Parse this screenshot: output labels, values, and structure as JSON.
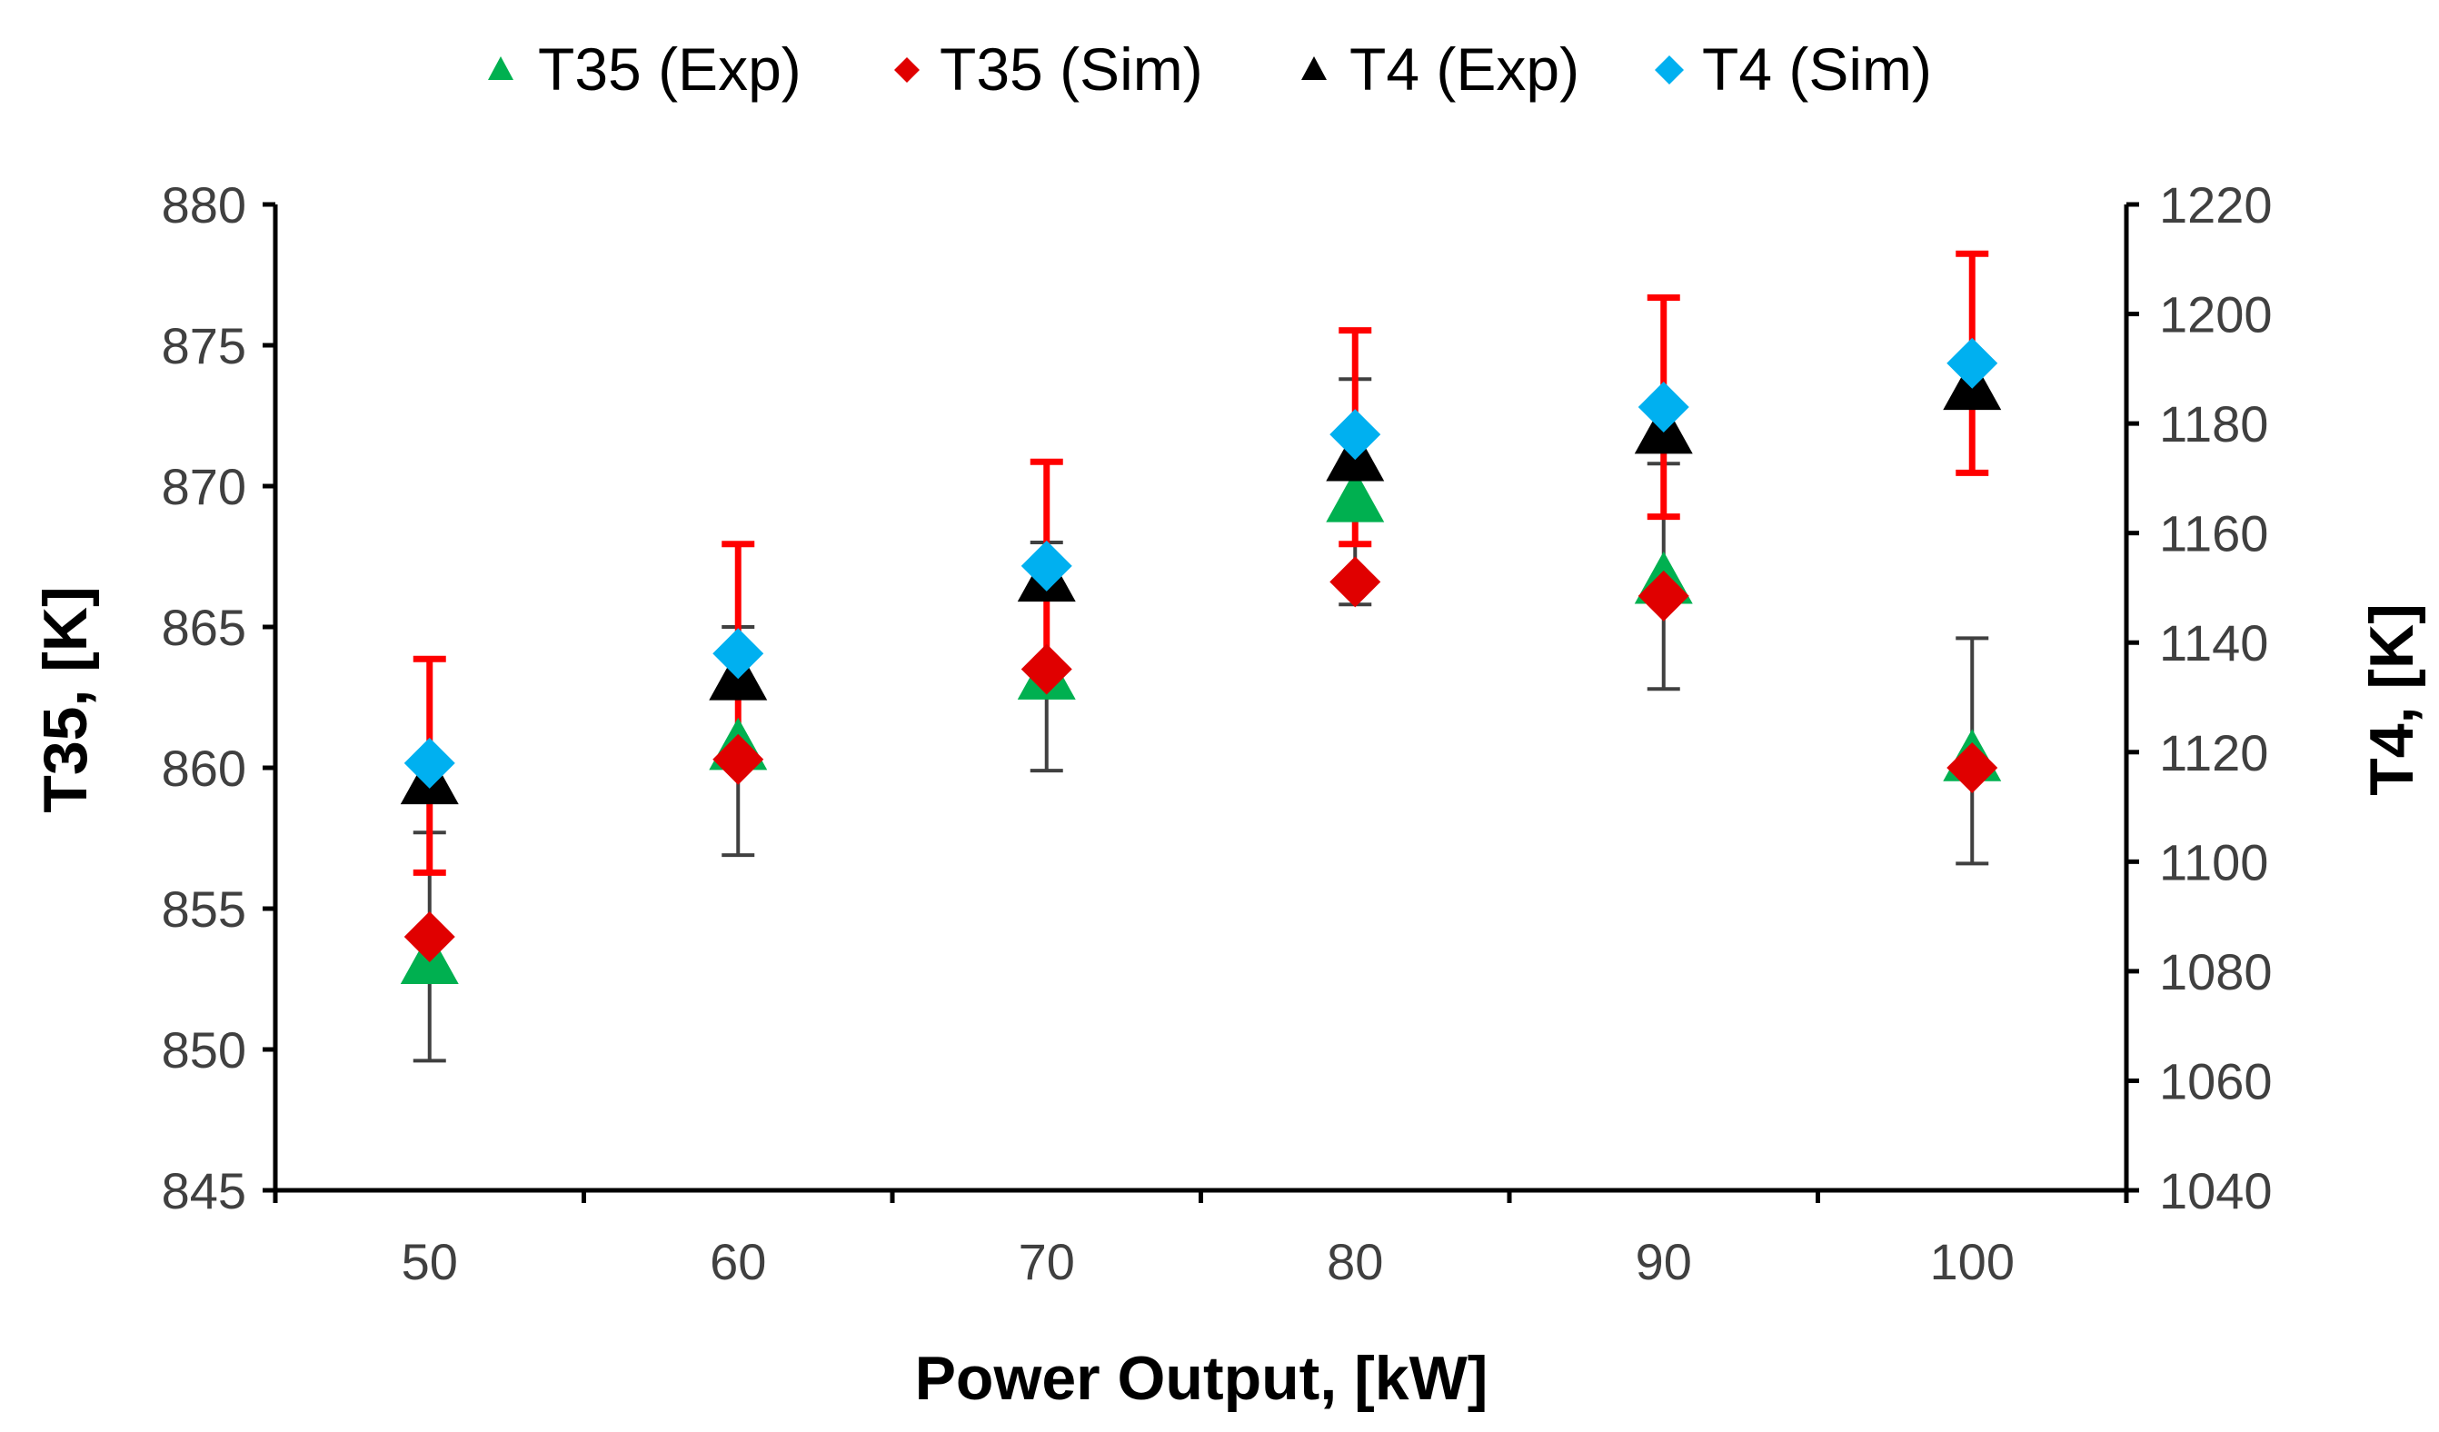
{
  "chart_data": {
    "type": "scatter",
    "title": "",
    "xlabel": "Power Output, [kW]",
    "ylabel": "T35, [K]",
    "y2label": "T4, [K]",
    "x": [
      50,
      60,
      70,
      80,
      90,
      100
    ],
    "xlim": [
      45,
      105
    ],
    "xticks": [
      "50",
      "60",
      "70",
      "80",
      "90",
      "100"
    ],
    "ylim": [
      845,
      880
    ],
    "yticks": [
      "845",
      "850",
      "855",
      "860",
      "865",
      "870",
      "875",
      "880"
    ],
    "y2lim": [
      1040,
      1220
    ],
    "y2ticks": [
      "1040",
      "1060",
      "1080",
      "1100",
      "1120",
      "1140",
      "1160",
      "1180",
      "1200",
      "1220"
    ],
    "legend_position": "top",
    "series": [
      {
        "name": "T35 (Exp)",
        "axis": "left",
        "marker": "triangle",
        "color": "#00b050",
        "values": [
          853.2,
          860.8,
          863.3,
          869.6,
          866.7,
          860.4
        ],
        "error_low": [
          849.6,
          856.9,
          859.9,
          865.8,
          862.8,
          856.6
        ],
        "error_high": [
          857.7,
          865.0,
          868.0,
          873.8,
          870.8,
          864.6
        ],
        "error_color": "#404040"
      },
      {
        "name": "T35 (Sim)",
        "axis": "left",
        "marker": "diamond",
        "color": "#e00000",
        "values": [
          854.0,
          860.3,
          863.5,
          866.6,
          866.1,
          860.0
        ],
        "error_low": [],
        "error_high": [],
        "error_color": "#e00000"
      },
      {
        "name": "T4 (Exp)",
        "axis": "right",
        "marker": "triangle",
        "color": "#000000",
        "values": [
          1115,
          1134,
          1152,
          1174,
          1179,
          1187
        ],
        "error_low": [],
        "error_high": [],
        "error_color": "#404040"
      },
      {
        "name": "T4 (Sim)",
        "axis": "right",
        "marker": "diamond",
        "color": "#00b0f0",
        "values": [
          1118,
          1138,
          1154,
          1178,
          1183,
          1191
        ],
        "error_low": [
          1098,
          1118,
          1135,
          1158,
          1163,
          1171
        ],
        "error_high": [
          1137,
          1158,
          1173,
          1197,
          1203,
          1211
        ],
        "error_color": "#ff0000"
      }
    ]
  }
}
